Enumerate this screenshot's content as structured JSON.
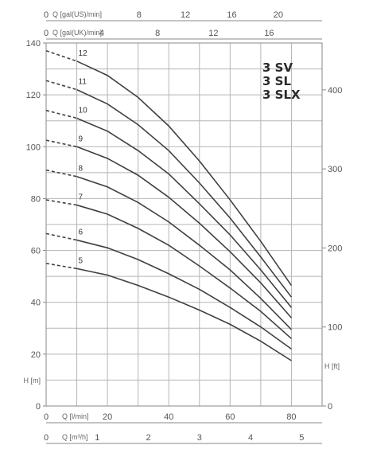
{
  "chart_data": {
    "type": "line",
    "model_labels": [
      "3 SV",
      "3 SL",
      "3 SLX"
    ],
    "y_axis": {
      "unit_label": "H [m]",
      "ticks": [
        0,
        20,
        40,
        60,
        80,
        100,
        120,
        140
      ],
      "ylim": [
        0,
        140
      ]
    },
    "y_axis_right": {
      "unit_label": "H [ft]",
      "ticks": [
        0,
        100,
        200,
        300,
        400
      ],
      "ylim": [
        0,
        459.3
      ]
    },
    "x_axis_main": {
      "unit_label": "Q [l/min]",
      "ticks": [
        0,
        20,
        40,
        60,
        80
      ],
      "xlim": [
        0,
        90
      ]
    },
    "x_axis_m3h": {
      "unit_label": "Q [m³/h]",
      "ticks": [
        0,
        1,
        2,
        3,
        4,
        5
      ],
      "xlim": [
        0,
        5.4
      ]
    },
    "x_axis_gal_us": {
      "unit_label": "Q [gal(US)/min]",
      "ticks": [
        0,
        8,
        12,
        16,
        20
      ]
    },
    "x_axis_gal_uk": {
      "unit_label": "Q [gal(UK)/min]",
      "ticks": [
        0,
        4,
        8,
        12,
        16
      ]
    },
    "grid": true,
    "series": [
      {
        "name": "5",
        "dashed_x": [
          0,
          10
        ],
        "dashed_y": [
          55,
          53
        ],
        "x": [
          10,
          20,
          30,
          40,
          50,
          60,
          70,
          80
        ],
        "y": [
          53,
          50.5,
          46.5,
          42,
          37,
          31.5,
          25,
          17.5
        ]
      },
      {
        "name": "6",
        "dashed_x": [
          0,
          10
        ],
        "dashed_y": [
          66.5,
          64
        ],
        "x": [
          10,
          20,
          30,
          40,
          50,
          60,
          70,
          80
        ],
        "y": [
          64,
          61,
          56.5,
          51,
          45,
          38,
          30.5,
          22
        ]
      },
      {
        "name": "7",
        "dashed_x": [
          0,
          10
        ],
        "dashed_y": [
          79.5,
          77.5
        ],
        "x": [
          10,
          20,
          30,
          40,
          50,
          60,
          70,
          80
        ],
        "y": [
          77.5,
          74,
          68.5,
          62,
          54,
          45.5,
          36.5,
          26
        ]
      },
      {
        "name": "8",
        "dashed_x": [
          0,
          10
        ],
        "dashed_y": [
          91,
          88.5
        ],
        "x": [
          10,
          20,
          30,
          40,
          50,
          60,
          70,
          80
        ],
        "y": [
          88.5,
          84.5,
          78.5,
          71,
          62,
          52.5,
          41.5,
          29.5
        ]
      },
      {
        "name": "9",
        "dashed_x": [
          0,
          10
        ],
        "dashed_y": [
          102.5,
          100
        ],
        "x": [
          10,
          20,
          30,
          40,
          50,
          60,
          70,
          80
        ],
        "y": [
          100,
          95.5,
          89,
          80.5,
          70.5,
          59.5,
          47.5,
          34
        ]
      },
      {
        "name": "10",
        "dashed_x": [
          0,
          10
        ],
        "dashed_y": [
          114,
          111
        ],
        "x": [
          10,
          20,
          30,
          40,
          50,
          60,
          70,
          80
        ],
        "y": [
          111,
          106,
          98.5,
          89.5,
          78,
          66,
          52.5,
          38
        ]
      },
      {
        "name": "11",
        "dashed_x": [
          0,
          10
        ],
        "dashed_y": [
          125.5,
          122
        ],
        "x": [
          10,
          20,
          30,
          40,
          50,
          60,
          70,
          80
        ],
        "y": [
          122,
          116.5,
          108.5,
          98.5,
          86,
          72.5,
          57.5,
          42
        ]
      },
      {
        "name": "12",
        "dashed_x": [
          0,
          10
        ],
        "dashed_y": [
          137,
          133
        ],
        "x": [
          10,
          20,
          30,
          40,
          50,
          60,
          70,
          80
        ],
        "y": [
          133,
          127.5,
          119,
          108,
          94.5,
          79.5,
          63.5,
          46.5
        ]
      }
    ]
  }
}
